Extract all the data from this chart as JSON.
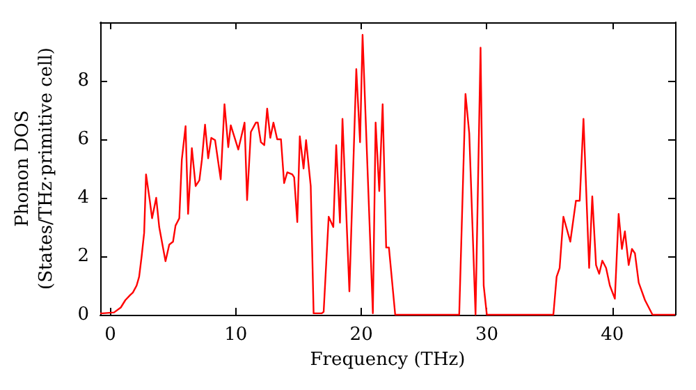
{
  "chart_data": {
    "type": "line",
    "xlabel": "Frequency (THz)",
    "ylabel": "Phonon DOS\n(States/THz·primitive cell)",
    "xlim": [
      -0.8,
      45.0
    ],
    "ylim": [
      0,
      10
    ],
    "xticks": [
      0,
      10,
      20,
      30,
      40
    ],
    "yticks": [
      0,
      2,
      4,
      6,
      8
    ],
    "grid": false,
    "marker": "none",
    "line_style": "solid",
    "series": [
      {
        "color": "#ff0000",
        "x": [
          -0.8,
          -0.6,
          0.3,
          0.84,
          1.2,
          1.6,
          1.8,
          2.1,
          2.3,
          2.5,
          2.7,
          2.85,
          3.15,
          3.33,
          3.66,
          3.9,
          4.4,
          4.7,
          5.0,
          5.2,
          5.5,
          5.7,
          6.0,
          6.2,
          6.5,
          6.8,
          7.1,
          7.3,
          7.55,
          7.8,
          8.05,
          8.35,
          8.8,
          9.1,
          9.4,
          9.6,
          10.2,
          10.7,
          10.9,
          11.2,
          11.6,
          11.75,
          12.0,
          12.27,
          12.5,
          12.75,
          13.0,
          13.3,
          13.6,
          13.85,
          14.1,
          14.5,
          14.65,
          14.9,
          15.1,
          15.4,
          15.6,
          15.97,
          16.2,
          16.85,
          17.0,
          17.4,
          17.77,
          18.0,
          18.3,
          18.5,
          19.05,
          19.6,
          19.9,
          20.1,
          20.92,
          21.14,
          21.43,
          21.7,
          21.98,
          22.2,
          22.7,
          27.8,
          28.3,
          28.6,
          29.1,
          29.5,
          29.75,
          30.0,
          35.3,
          35.56,
          35.8,
          36.1,
          36.65,
          37.1,
          37.4,
          37.7,
          38.15,
          38.4,
          38.7,
          38.95,
          39.2,
          39.5,
          39.8,
          40.2,
          40.5,
          40.76,
          41.0,
          41.3,
          41.56,
          41.8,
          42.1,
          42.6,
          43.2,
          45.0
        ],
        "values": [
          0.05,
          0.05,
          0.08,
          0.25,
          0.5,
          0.68,
          0.76,
          1.0,
          1.3,
          2.0,
          2.8,
          4.8,
          3.9,
          3.3,
          4.0,
          3.0,
          1.83,
          2.4,
          2.5,
          3.05,
          3.3,
          5.3,
          6.45,
          3.45,
          5.7,
          4.4,
          4.6,
          5.3,
          6.5,
          5.35,
          6.05,
          5.97,
          4.63,
          7.2,
          5.73,
          6.48,
          5.65,
          6.57,
          3.92,
          6.25,
          6.57,
          6.57,
          5.9,
          5.8,
          7.05,
          6.05,
          6.57,
          6.0,
          6.0,
          4.5,
          4.87,
          4.8,
          4.7,
          3.17,
          6.1,
          5.0,
          5.97,
          4.4,
          0.05,
          0.05,
          0.1,
          3.35,
          3.0,
          5.8,
          3.15,
          6.7,
          0.8,
          8.4,
          5.9,
          9.57,
          0.05,
          6.57,
          4.23,
          7.2,
          2.3,
          2.3,
          0,
          0,
          7.55,
          6.2,
          0,
          9.13,
          1.0,
          0,
          0,
          1.3,
          1.6,
          3.35,
          2.5,
          3.9,
          3.9,
          6.7,
          1.6,
          4.05,
          1.7,
          1.4,
          1.85,
          1.6,
          1.0,
          0.55,
          3.45,
          2.25,
          2.85,
          1.7,
          2.25,
          2.1,
          1.1,
          0.5,
          0,
          0
        ]
      }
    ]
  }
}
